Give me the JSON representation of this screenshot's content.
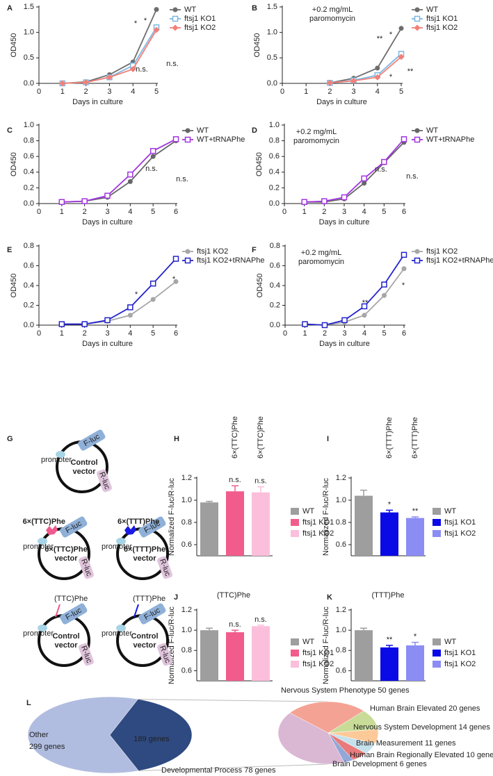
{
  "chart_data": [
    {
      "type": "line",
      "panel": "A",
      "xlabel": "Days in culture",
      "ylabel": "OD450",
      "x": [
        1,
        2,
        3,
        4,
        5
      ],
      "xlim": [
        0,
        5
      ],
      "xticks": [
        0,
        1,
        2,
        3,
        4,
        5
      ],
      "ylim": [
        0,
        1.5
      ],
      "yticks": [
        {
          "value": 0,
          "label": "0.0"
        },
        0.5,
        {
          "value": 1,
          "label": "1.0"
        },
        1.5
      ],
      "series": [
        {
          "name": "WT",
          "color": "#6d6d6d",
          "marker": "circle",
          "values": [
            0,
            0.03,
            0.17,
            0.42,
            1.45
          ]
        },
        {
          "name": "ftsj1 KO1",
          "color": "#7cb7e0",
          "marker": "open-square",
          "values": [
            0,
            0.02,
            0.12,
            0.35,
            1.1
          ]
        },
        {
          "name": "ftsj1 KO2",
          "color": "#f28079",
          "marker": "diamond",
          "values": [
            0,
            0.02,
            0.12,
            0.28,
            1.05
          ]
        }
      ],
      "annotations": [
        {
          "text": "*",
          "color": "#f0605a"
        },
        {
          "text": "*",
          "color": "#6fb0e0"
        },
        {
          "text": "n.s.",
          "color": "#6fb0e0"
        },
        {
          "text": "n.s.",
          "color": "#f0605a"
        }
      ]
    },
    {
      "type": "line",
      "panel": "B",
      "subtitle": [
        "+0.2 mg/mL",
        "paromomycin"
      ],
      "xlabel": "Days in culture",
      "ylabel": "OD450",
      "x": [
        2,
        3,
        4,
        5
      ],
      "xlim": [
        0,
        5
      ],
      "xticks": [
        0,
        1,
        2,
        3,
        4,
        5
      ],
      "ylim": [
        0,
        1.5
      ],
      "yticks": [
        {
          "value": 0,
          "label": "0.0"
        },
        0.5,
        {
          "value": 1,
          "label": "1.0"
        },
        1.5
      ],
      "series": [
        {
          "name": "WT",
          "color": "#6d6d6d",
          "marker": "circle",
          "values": [
            0.01,
            0.1,
            0.3,
            1.08
          ]
        },
        {
          "name": "ftsj1 KO1",
          "color": "#7cb7e0",
          "marker": "open-square",
          "values": [
            0.01,
            0.06,
            0.16,
            0.58
          ]
        },
        {
          "name": "ftsj1 KO2",
          "color": "#f28079",
          "marker": "diamond",
          "values": [
            0.01,
            0.05,
            0.12,
            0.52
          ]
        }
      ],
      "annotations": [
        {
          "text": "**",
          "color": "#f0605a"
        },
        {
          "text": "*",
          "color": "#6fb0e0"
        },
        {
          "text": "*",
          "color": "#6fb0e0"
        },
        {
          "text": "**",
          "color": "#f0605a"
        }
      ]
    },
    {
      "type": "line",
      "panel": "C",
      "xlabel": "Days in culture",
      "ylabel": "OD450",
      "x": [
        1,
        2,
        3,
        4,
        5,
        6
      ],
      "xlim": [
        0,
        6
      ],
      "xticks": [
        0,
        1,
        2,
        3,
        4,
        5,
        6
      ],
      "ylim": [
        0,
        1
      ],
      "yticks": [
        {
          "value": 0,
          "label": "0.0"
        },
        0.2,
        0.4,
        0.6,
        0.8,
        {
          "value": 1,
          "label": "1.0"
        }
      ],
      "series": [
        {
          "name": "WT",
          "color": "#666666",
          "marker": "circle",
          "values": [
            0.02,
            0.03,
            0.08,
            0.28,
            0.6,
            0.8
          ]
        },
        {
          "name": "WT+tRNAPhe",
          "color": "#a234e0",
          "marker": "open-square",
          "values": [
            0.02,
            0.03,
            0.1,
            0.37,
            0.67,
            0.82
          ]
        }
      ],
      "annotations": [
        {
          "text": "n.s.",
          "color": "#333333"
        },
        {
          "text": "n.s.",
          "color": "#333333"
        }
      ]
    },
    {
      "type": "line",
      "panel": "D",
      "subtitle": [
        "+0.2 mg/mL",
        "paromomycin"
      ],
      "xlabel": "Days in culture",
      "ylabel": "OD450",
      "x": [
        1,
        2,
        3,
        4,
        5,
        6
      ],
      "xlim": [
        0,
        6
      ],
      "xticks": [
        0,
        1,
        2,
        3,
        4,
        5,
        6
      ],
      "ylim": [
        0,
        1
      ],
      "yticks": [
        {
          "value": 0,
          "label": "0.0"
        },
        0.2,
        0.4,
        0.6,
        0.8,
        {
          "value": 1,
          "label": "1.0"
        }
      ],
      "series": [
        {
          "name": "WT",
          "color": "#666666",
          "marker": "circle",
          "values": [
            0.02,
            0.02,
            0.06,
            0.26,
            0.52,
            0.78
          ]
        },
        {
          "name": "WT+tRNAPhe",
          "color": "#a234e0",
          "marker": "open-square",
          "values": [
            0.02,
            0.03,
            0.08,
            0.32,
            0.53,
            0.82
          ]
        }
      ],
      "annotations": [
        {
          "text": "n.s.",
          "color": "#333333"
        },
        {
          "text": "n.s.",
          "color": "#333333"
        }
      ]
    },
    {
      "type": "line",
      "panel": "E",
      "xlabel": "Days in culture",
      "ylabel": "OD450",
      "x": [
        1,
        2,
        3,
        4,
        5,
        6
      ],
      "xlim": [
        0,
        6
      ],
      "xticks": [
        0,
        1,
        2,
        3,
        4,
        5,
        6
      ],
      "ylim": [
        0,
        0.8
      ],
      "yticks": [
        {
          "value": 0,
          "label": "0.0"
        },
        0.2,
        0.4,
        0.6,
        0.8
      ],
      "series": [
        {
          "name": "ftsj1 KO2",
          "color": "#a6a6a6",
          "marker": "circle",
          "values": [
            0.01,
            0.01,
            0.04,
            0.1,
            0.26,
            0.44
          ]
        },
        {
          "name": "ftsj1 KO2+tRNAPhe",
          "color": "#2222cc",
          "marker": "open-square",
          "values": [
            0.01,
            0.01,
            0.05,
            0.18,
            0.42,
            0.67
          ]
        }
      ],
      "annotations": [
        {
          "text": "*",
          "color": "#333333"
        },
        {
          "text": "*",
          "color": "#333333"
        }
      ]
    },
    {
      "type": "line",
      "panel": "F",
      "subtitle": [
        "+0.2 mg/mL",
        "paromomycin"
      ],
      "xlabel": "Days in culture",
      "ylabel": "OD450",
      "x": [
        1,
        2,
        3,
        4,
        5,
        6
      ],
      "xlim": [
        0,
        6
      ],
      "xticks": [
        0,
        1,
        2,
        3,
        4,
        5,
        6
      ],
      "ylim": [
        0,
        0.8
      ],
      "yticks": [
        {
          "value": 0,
          "label": "0.0"
        },
        0.2,
        0.4,
        0.6,
        0.8
      ],
      "series": [
        {
          "name": "ftsj1 KO2",
          "color": "#a6a6a6",
          "marker": "circle",
          "values": [
            0.01,
            0,
            0.03,
            0.1,
            0.3,
            0.57
          ]
        },
        {
          "name": "ftsj1 KO2+tRNAPhe",
          "color": "#2222cc",
          "marker": "open-square",
          "values": [
            0.01,
            0,
            0.05,
            0.19,
            0.41,
            0.71
          ]
        }
      ],
      "annotations": [
        {
          "text": "**",
          "color": "#333333"
        },
        {
          "text": "*",
          "color": "#333333"
        }
      ]
    },
    {
      "type": "bar",
      "panel": "H",
      "ylabel": "Normalized F-luc/R-luc",
      "ylim": [
        0.5,
        1.2
      ],
      "yticks": [
        0.6,
        0.8,
        {
          "value": 1,
          "label": "1.0"
        },
        1.2
      ],
      "series": [
        {
          "name": "WT",
          "color": "#9e9e9e",
          "values": [
            0.98
          ],
          "errors": [
            0.01
          ]
        },
        {
          "name": "ftsj1 KO1",
          "color": "#f25c8c",
          "values": [
            1.08
          ],
          "errors": [
            0.05
          ],
          "annotation": "n.s.",
          "rotated_label": "6×(TTC)Phe"
        },
        {
          "name": "ftsj1 KO2",
          "color": "#fbbfdc",
          "values": [
            1.07
          ],
          "errors": [
            0.05
          ],
          "annotation": "n.s.",
          "rotated_label": "6×(TTC)Phe"
        }
      ]
    },
    {
      "type": "bar",
      "panel": "I",
      "ylabel": "Normalized F-luc/R-luc",
      "ylim": [
        0.5,
        1.2
      ],
      "yticks": [
        0.6,
        0.8,
        {
          "value": 1,
          "label": "1.0"
        },
        1.2
      ],
      "series": [
        {
          "name": "WT",
          "color": "#9e9e9e",
          "values": [
            1.04
          ],
          "errors": [
            0.05
          ]
        },
        {
          "name": "ftsj1 KO1",
          "color": "#0a0ae6",
          "values": [
            0.89
          ],
          "errors": [
            0.02
          ],
          "annotation": "*",
          "rotated_label": "6×(TTT)Phe"
        },
        {
          "name": "ftsj1 KO2",
          "color": "#8c8cf5",
          "values": [
            0.84
          ],
          "errors": [
            0.01
          ],
          "annotation": "**",
          "rotated_label": "6×(TTT)Phe"
        }
      ]
    },
    {
      "type": "bar",
      "panel": "J",
      "subtitle": "(TTC)Phe",
      "ylabel": "Normalized F-luc/R-luc",
      "ylim": [
        0.5,
        1.2
      ],
      "yticks": [
        0.6,
        0.8,
        {
          "value": 1,
          "label": "1.0"
        },
        1.2
      ],
      "series": [
        {
          "name": "WT",
          "color": "#9e9e9e",
          "values": [
            1.0
          ],
          "errors": [
            0.02
          ]
        },
        {
          "name": "ftsj1 KO1",
          "color": "#f25c8c",
          "values": [
            0.98
          ],
          "errors": [
            0.02
          ],
          "annotation": "n.s."
        },
        {
          "name": "ftsj1 KO2",
          "color": "#fbbfdc",
          "values": [
            1.04
          ],
          "errors": [
            0.01
          ],
          "annotation": "n.s."
        }
      ]
    },
    {
      "type": "bar",
      "panel": "K",
      "subtitle": "(TTT)Phe",
      "ylabel": "Normalized F-luc/R-luc",
      "ylim": [
        0.5,
        1.2
      ],
      "yticks": [
        0.6,
        0.8,
        {
          "value": 1,
          "label": "1.0"
        },
        1.2
      ],
      "series": [
        {
          "name": "WT",
          "color": "#9e9e9e",
          "values": [
            1.0
          ],
          "errors": [
            0.02
          ]
        },
        {
          "name": "ftsj1 KO1",
          "color": "#0a0ae6",
          "values": [
            0.83
          ],
          "errors": [
            0.02
          ],
          "annotation": "**"
        },
        {
          "name": "ftsj1 KO2",
          "color": "#8c8cf5",
          "values": [
            0.85
          ],
          "errors": [
            0.03
          ],
          "annotation": "*"
        }
      ]
    },
    {
      "type": "pie",
      "panel": "L",
      "labels": [
        [
          "Other",
          "299 genes"
        ],
        [
          "189 genes"
        ]
      ],
      "values": [
        299,
        189
      ],
      "colors": [
        "#b1bde0",
        "#2e4a80"
      ]
    },
    {
      "type": "pie",
      "labels": [
        "Nervous System Phenotype 50 genes",
        "Human Brain Elevated 20 genes",
        "Nervous System Development 14 genes",
        "Brain Measurement 11 genes",
        "Human Brain Regionally Elevated 10 genes",
        "Brain Development 6 genes",
        "Developmental Process 78 genes"
      ],
      "values": [
        50,
        20,
        14,
        11,
        10,
        6,
        78
      ],
      "colors": [
        "#f4a294",
        "#c8dc98",
        "#fcc999",
        "#c5e1ec",
        "#e97a7b",
        "#94a8d8",
        "#dab7d3"
      ]
    }
  ],
  "diagram": {
    "panel": "G",
    "plasmids": [
      {
        "f_luc": "F-luc",
        "r_luc": "R-luc",
        "promoter": "promoter",
        "label": [
          "Control",
          "vector"
        ]
      },
      {
        "insert": "6×(TTC)Phe",
        "f_luc": "F-luc",
        "r_luc": "R-luc",
        "promoter": "promoter",
        "label": [
          "6×(TTC)Phe",
          "vector"
        ]
      },
      {
        "insert": "6×(TTT)Phe",
        "f_luc": "F-luc",
        "r_luc": "R-luc",
        "promoter": "promoter",
        "label": [
          "6×(TTT)Phe",
          "vector"
        ]
      },
      {
        "insert": "(TTC)Phe",
        "f_luc": "F-luc",
        "r_luc": "R-luc",
        "promoter": "promoter",
        "label": [
          "Control",
          "vector"
        ]
      },
      {
        "insert": "(TTT)Phe",
        "f_luc": "F-luc",
        "r_luc": "R-luc",
        "promoter": "promoter",
        "label": [
          "Control",
          "vector"
        ]
      }
    ]
  }
}
